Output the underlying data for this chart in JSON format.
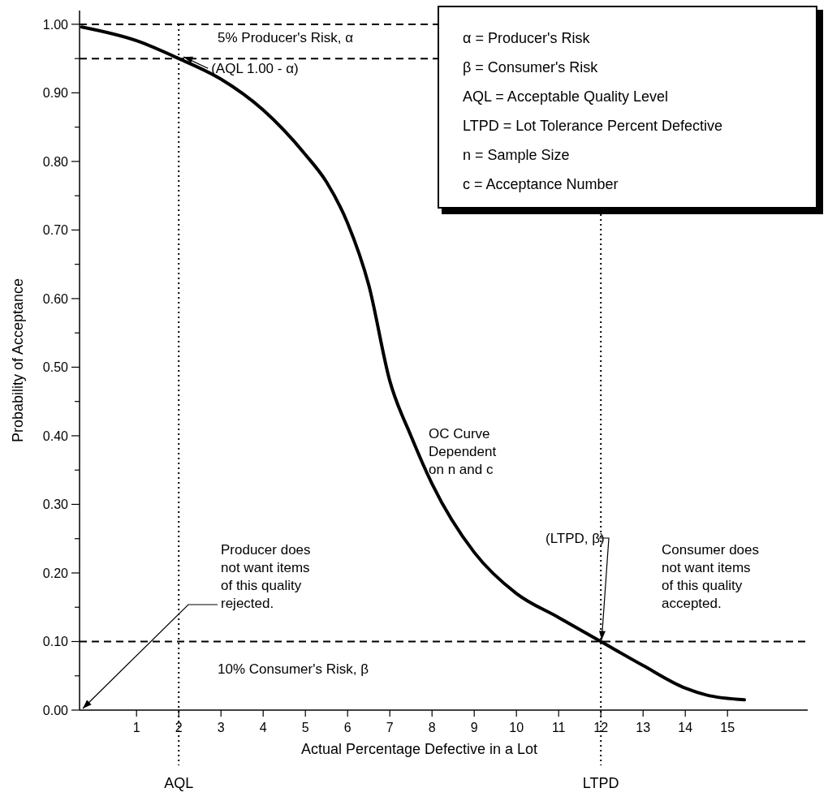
{
  "chart_data": {
    "type": "line",
    "xlabel": "Actual Percentage Defective in a Lot",
    "ylabel": "Probability of Acceptance",
    "x": [
      -0.3,
      1,
      2,
      3,
      4,
      5,
      5.5,
      6,
      6.5,
      7,
      7.5,
      8,
      9,
      10,
      11,
      12,
      13,
      14,
      14.5,
      15.4
    ],
    "series": [
      {
        "color": "#000000",
        "values": [
          0.996,
          0.976,
          0.95,
          0.92,
          0.875,
          0.81,
          0.77,
          0.71,
          0.62,
          0.48,
          0.4,
          0.33,
          0.23,
          0.17,
          0.135,
          0.1,
          0.065,
          0.032,
          0.022,
          0.015
        ]
      }
    ],
    "xlim": [
      -0.35,
      16.9
    ],
    "ylim": [
      0,
      1.02
    ],
    "xticks": [
      1,
      2,
      3,
      4,
      5,
      6,
      7,
      8,
      9,
      10,
      11,
      12,
      13,
      14,
      15
    ],
    "yticks": [
      {
        "value": 0,
        "label": "0.00"
      },
      {
        "value": 0.05,
        "label": null
      },
      {
        "value": 0.1,
        "label": "0.10"
      },
      {
        "value": 0.15,
        "label": null
      },
      {
        "value": 0.2,
        "label": "0.20"
      },
      {
        "value": 0.25,
        "label": null
      },
      {
        "value": 0.3,
        "label": "0.30"
      },
      {
        "value": 0.35,
        "label": null
      },
      {
        "value": 0.4,
        "label": "0.40"
      },
      {
        "value": 0.45,
        "label": null
      },
      {
        "value": 0.5,
        "label": "0.50"
      },
      {
        "value": 0.55,
        "label": null
      },
      {
        "value": 0.6,
        "label": "0.60"
      },
      {
        "value": 0.65,
        "label": null
      },
      {
        "value": 0.7,
        "label": "0.70"
      },
      {
        "value": 0.75,
        "label": null
      },
      {
        "value": 0.8,
        "label": "0.80"
      },
      {
        "value": 0.85,
        "label": null
      },
      {
        "value": 0.9,
        "label": "0.90"
      },
      {
        "value": 0.95,
        "label": null
      },
      {
        "value": 1.0,
        "label": "1.00"
      }
    ],
    "grid": false,
    "marker": "none",
    "line_style": "solid",
    "ref_lines": [
      {
        "axis": "y",
        "value": 1.0,
        "line_style": "dashed"
      },
      {
        "axis": "y",
        "value": 0.95,
        "line_style": "dashed"
      },
      {
        "axis": "y",
        "value": 0.1,
        "line_style": "dashed"
      },
      {
        "axis": "x",
        "value": 2,
        "label": "AQL",
        "line_style": "dotted"
      },
      {
        "axis": "x",
        "value": 12,
        "label": "LTPD",
        "line_style": "dotted"
      }
    ],
    "annotations": [
      "α  =  Producer's Risk",
      "β  =  Consumer's Risk",
      "AQL  =  Acceptable Quality Level",
      "LTPD  =  Lot Tolerance Percent Defective",
      "n  =  Sample Size",
      "c  =  Acceptance Number",
      "5% Producer's Risk, α",
      {
        "text": "(AQL 1.00 - α)",
        "x": 2,
        "y": 0.95
      },
      "OC Curve\nDependent\non n and c",
      {
        "text": "(LTPD, β)",
        "x": 12,
        "y": 0.1
      },
      "Producer does\nnot want items\nof this quality\nrejected.",
      "Consumer does\nnot want items\nof this quality\naccepted.",
      "10% Consumer's Risk, β"
    ]
  }
}
